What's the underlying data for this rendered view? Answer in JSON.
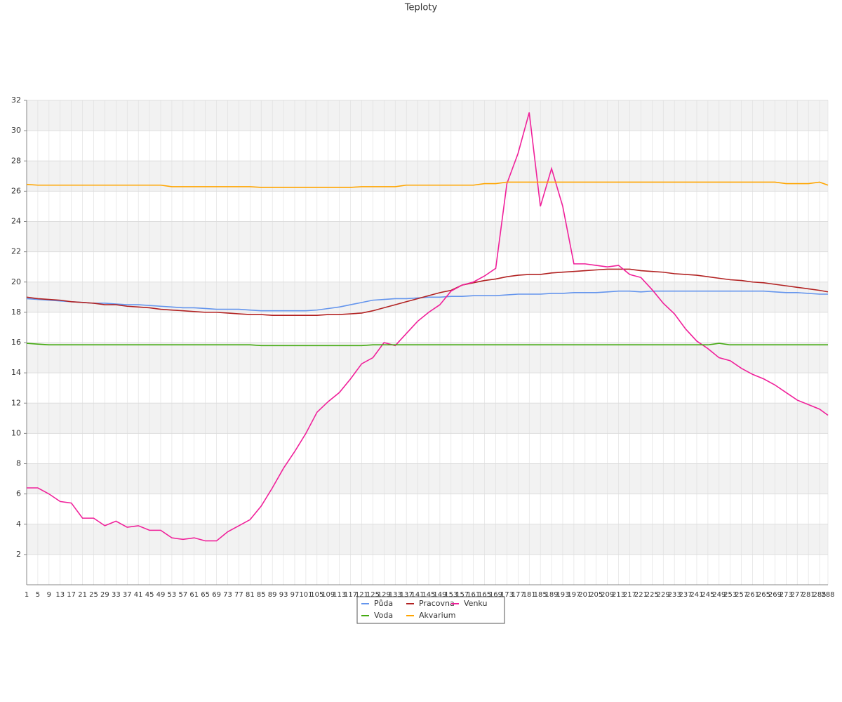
{
  "chart_data": {
    "type": "line",
    "title": "Teploty",
    "x": [
      1,
      5,
      9,
      13,
      17,
      21,
      25,
      29,
      33,
      37,
      41,
      45,
      49,
      53,
      57,
      61,
      65,
      69,
      73,
      77,
      81,
      85,
      89,
      93,
      97,
      101,
      105,
      109,
      113,
      117,
      121,
      125,
      129,
      133,
      137,
      141,
      145,
      149,
      153,
      157,
      161,
      165,
      169,
      173,
      177,
      181,
      185,
      189,
      193,
      197,
      201,
      205,
      209,
      213,
      217,
      221,
      225,
      229,
      233,
      237,
      241,
      245,
      249,
      253,
      257,
      261,
      265,
      269,
      273,
      277,
      281,
      285,
      288
    ],
    "xlim": [
      1,
      288
    ],
    "xticks": [
      1,
      5,
      9,
      13,
      17,
      21,
      25,
      29,
      33,
      37,
      41,
      45,
      49,
      53,
      57,
      61,
      65,
      69,
      73,
      77,
      81,
      85,
      89,
      93,
      97,
      101,
      105,
      109,
      113,
      117,
      121,
      125,
      129,
      133,
      137,
      141,
      145,
      149,
      153,
      157,
      161,
      165,
      169,
      173,
      177,
      181,
      185,
      189,
      193,
      197,
      201,
      205,
      209,
      213,
      217,
      221,
      225,
      229,
      233,
      237,
      241,
      245,
      249,
      253,
      257,
      261,
      265,
      269,
      273,
      277,
      281,
      285,
      288
    ],
    "ylim": [
      0,
      32
    ],
    "yticks": [
      2,
      4,
      6,
      8,
      10,
      12,
      14,
      16,
      18,
      20,
      22,
      24,
      26,
      28,
      30,
      32
    ],
    "grid": true,
    "legend": "bottom",
    "series": [
      {
        "name": "Půda",
        "color": "#6495ed",
        "values": [
          18.9,
          18.85,
          18.8,
          18.75,
          18.7,
          18.65,
          18.6,
          18.6,
          18.55,
          18.5,
          18.5,
          18.45,
          18.4,
          18.35,
          18.3,
          18.3,
          18.25,
          18.2,
          18.2,
          18.2,
          18.15,
          18.1,
          18.1,
          18.1,
          18.1,
          18.1,
          18.15,
          18.25,
          18.35,
          18.5,
          18.65,
          18.8,
          18.85,
          18.9,
          18.9,
          18.95,
          19.0,
          19.0,
          19.05,
          19.05,
          19.1,
          19.1,
          19.1,
          19.15,
          19.2,
          19.2,
          19.2,
          19.25,
          19.25,
          19.3,
          19.3,
          19.3,
          19.35,
          19.4,
          19.4,
          19.35,
          19.4,
          19.4,
          19.4,
          19.4,
          19.4,
          19.4,
          19.4,
          19.4,
          19.4,
          19.4,
          19.4,
          19.35,
          19.3,
          19.3,
          19.25,
          19.2,
          19.2
        ]
      },
      {
        "name": "Pracovna",
        "color": "#b22222",
        "values": [
          19.0,
          18.9,
          18.85,
          18.8,
          18.7,
          18.65,
          18.6,
          18.5,
          18.5,
          18.4,
          18.35,
          18.3,
          18.2,
          18.15,
          18.1,
          18.05,
          18.0,
          18.0,
          17.95,
          17.9,
          17.85,
          17.85,
          17.8,
          17.8,
          17.8,
          17.8,
          17.8,
          17.85,
          17.85,
          17.9,
          17.95,
          18.1,
          18.3,
          18.5,
          18.7,
          18.9,
          19.1,
          19.3,
          19.45,
          19.8,
          19.95,
          20.1,
          20.2,
          20.35,
          20.45,
          20.5,
          20.5,
          20.6,
          20.65,
          20.7,
          20.75,
          20.8,
          20.85,
          20.85,
          20.85,
          20.75,
          20.7,
          20.65,
          20.55,
          20.5,
          20.45,
          20.35,
          20.25,
          20.15,
          20.1,
          20.0,
          19.95,
          19.85,
          19.75,
          19.65,
          19.55,
          19.45,
          19.35
        ]
      },
      {
        "name": "Venku",
        "color": "#f0209a",
        "values": [
          6.4,
          6.4,
          6.0,
          5.5,
          5.4,
          4.4,
          4.4,
          3.9,
          4.2,
          3.8,
          3.9,
          3.6,
          3.6,
          3.1,
          3.0,
          3.1,
          2.9,
          2.9,
          3.5,
          3.9,
          4.3,
          5.2,
          6.4,
          7.7,
          8.8,
          10.0,
          11.4,
          12.1,
          12.7,
          13.6,
          14.6,
          15.0,
          16.0,
          15.8,
          16.6,
          17.4,
          18.0,
          18.5,
          19.4,
          19.8,
          20.0,
          20.4,
          20.9,
          26.5,
          28.5,
          31.2,
          25.0,
          27.5,
          25.0,
          21.2,
          21.2,
          21.1,
          21.0,
          21.1,
          20.5,
          20.3,
          19.5,
          18.6,
          17.9,
          16.9,
          16.1,
          15.6,
          15.0,
          14.8,
          14.3,
          13.9,
          13.6,
          13.2,
          12.7,
          12.2,
          11.9,
          11.6,
          11.2
        ]
      },
      {
        "name": "Voda",
        "color": "#44aa11",
        "values": [
          15.95,
          15.9,
          15.85,
          15.85,
          15.85,
          15.85,
          15.85,
          15.85,
          15.85,
          15.85,
          15.85,
          15.85,
          15.85,
          15.85,
          15.85,
          15.85,
          15.85,
          15.85,
          15.85,
          15.85,
          15.85,
          15.8,
          15.8,
          15.8,
          15.8,
          15.8,
          15.8,
          15.8,
          15.8,
          15.8,
          15.8,
          15.85,
          15.85,
          15.85,
          15.85,
          15.85,
          15.85,
          15.85,
          15.85,
          15.85,
          15.85,
          15.85,
          15.85,
          15.85,
          15.85,
          15.85,
          15.85,
          15.85,
          15.85,
          15.85,
          15.85,
          15.85,
          15.85,
          15.85,
          15.85,
          15.85,
          15.85,
          15.85,
          15.85,
          15.85,
          15.85,
          15.85,
          15.95,
          15.85,
          15.85,
          15.85,
          15.85,
          15.85,
          15.85,
          15.85,
          15.85,
          15.85,
          15.85
        ]
      },
      {
        "name": "Akvarium",
        "color": "#ffa500",
        "values": [
          26.45,
          26.4,
          26.4,
          26.4,
          26.4,
          26.4,
          26.4,
          26.4,
          26.4,
          26.4,
          26.4,
          26.4,
          26.4,
          26.3,
          26.3,
          26.3,
          26.3,
          26.3,
          26.3,
          26.3,
          26.3,
          26.25,
          26.25,
          26.25,
          26.25,
          26.25,
          26.25,
          26.25,
          26.25,
          26.25,
          26.3,
          26.3,
          26.3,
          26.3,
          26.4,
          26.4,
          26.4,
          26.4,
          26.4,
          26.4,
          26.4,
          26.5,
          26.5,
          26.6,
          26.6,
          26.6,
          26.6,
          26.6,
          26.6,
          26.6,
          26.6,
          26.6,
          26.6,
          26.6,
          26.6,
          26.6,
          26.6,
          26.6,
          26.6,
          26.6,
          26.6,
          26.6,
          26.6,
          26.6,
          26.6,
          26.6,
          26.6,
          26.6,
          26.5,
          26.5,
          26.5,
          26.6,
          26.4
        ]
      }
    ]
  }
}
